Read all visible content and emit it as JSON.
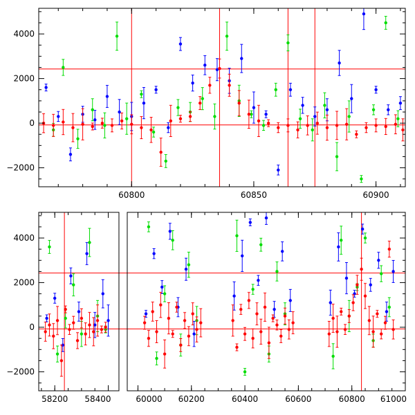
{
  "chart_data": [
    {
      "type": "scatter",
      "title": "",
      "xlabel": "",
      "ylabel": "",
      "xlim": [
        60762,
        60912
      ],
      "ylim": [
        -2850,
        5150
      ],
      "xticks": [
        60800,
        60850,
        60900
      ],
      "yticks": [
        -2000,
        0,
        2000,
        4000
      ],
      "hlines": [
        2430,
        -80
      ],
      "vlines": [
        60800,
        60836,
        60864,
        60875
      ],
      "series": [
        {
          "color": "#0000ff",
          "points": [
            [
              60765,
              1600
            ],
            [
              60770,
              300
            ],
            [
              60775,
              -1400
            ],
            [
              60780,
              400
            ],
            [
              60785,
              150
            ],
            [
              60790,
              1200
            ],
            [
              60795,
              500
            ],
            [
              60800,
              300
            ],
            [
              60805,
              900
            ],
            [
              60810,
              1500
            ],
            [
              60815,
              -200
            ],
            [
              60820,
              3550
            ],
            [
              60825,
              1800
            ],
            [
              60830,
              2600
            ],
            [
              60835,
              2400
            ],
            [
              60840,
              1900
            ],
            [
              60845,
              2900
            ],
            [
              60850,
              700
            ],
            [
              60855,
              400
            ],
            [
              60860,
              -2100
            ],
            [
              60865,
              1500
            ],
            [
              60870,
              800
            ],
            [
              60875,
              300
            ],
            [
              60880,
              600
            ],
            [
              60885,
              2700
            ],
            [
              60890,
              1100
            ],
            [
              60895,
              4900
            ],
            [
              60900,
              1500
            ],
            [
              60905,
              600
            ],
            [
              60910,
              900
            ]
          ]
        },
        {
          "color": "#00dd00",
          "points": [
            [
              60768,
              -300
            ],
            [
              60772,
              2500
            ],
            [
              60778,
              -700
            ],
            [
              60784,
              600
            ],
            [
              60789,
              -100
            ],
            [
              60794,
              3900
            ],
            [
              60798,
              200
            ],
            [
              60804,
              1300
            ],
            [
              60809,
              -400
            ],
            [
              60814,
              -1700
            ],
            [
              60819,
              700
            ],
            [
              60824,
              500
            ],
            [
              60829,
              1100
            ],
            [
              60834,
              300
            ],
            [
              60839,
              3900
            ],
            [
              60844,
              1000
            ],
            [
              60849,
              400
            ],
            [
              60854,
              -100
            ],
            [
              60859,
              1500
            ],
            [
              60864,
              3600
            ],
            [
              60869,
              200
            ],
            [
              60874,
              -300
            ],
            [
              60879,
              800
            ],
            [
              60884,
              -1500
            ],
            [
              60889,
              300
            ],
            [
              60894,
              -2500
            ],
            [
              60899,
              600
            ],
            [
              60904,
              4500
            ],
            [
              60909,
              200
            ]
          ]
        },
        {
          "color": "#ff0000",
          "points": [
            [
              60764,
              0
            ],
            [
              60768,
              -100
            ],
            [
              60772,
              50
            ],
            [
              60776,
              -200
            ],
            [
              60780,
              -50
            ],
            [
              60784,
              -150
            ],
            [
              60788,
              0
            ],
            [
              60792,
              -100
            ],
            [
              60796,
              100
            ],
            [
              60800,
              -50
            ],
            [
              60804,
              -200
            ],
            [
              60808,
              -300
            ],
            [
              60812,
              -1300
            ],
            [
              60816,
              100
            ],
            [
              60820,
              200
            ],
            [
              60824,
              300
            ],
            [
              60828,
              900
            ],
            [
              60832,
              1700
            ],
            [
              60836,
              2450
            ],
            [
              60840,
              1700
            ],
            [
              60844,
              900
            ],
            [
              60848,
              400
            ],
            [
              60852,
              100
            ],
            [
              60856,
              0
            ],
            [
              60860,
              -200
            ],
            [
              60864,
              -100
            ],
            [
              60868,
              -300
            ],
            [
              60872,
              -100
            ],
            [
              60876,
              0
            ],
            [
              60880,
              -200
            ],
            [
              60884,
              -100
            ],
            [
              60888,
              -50
            ],
            [
              60892,
              -500
            ],
            [
              60896,
              -200
            ],
            [
              60900,
              -100
            ],
            [
              60904,
              -150
            ],
            [
              60908,
              -50
            ],
            [
              60911,
              -300
            ]
          ]
        }
      ]
    },
    {
      "type": "scatter",
      "title": "",
      "xlabel": "",
      "ylabel": "",
      "xlim": [
        58140,
        61000
      ],
      "ylim": [
        -2850,
        5150
      ],
      "xticks": [
        58200,
        58400,
        60000,
        60200,
        60400,
        60600,
        60800,
        61000
      ],
      "xticklabels": [
        "58200",
        "58400",
        "60000",
        "60200",
        "60400",
        "60600",
        "60800",
        "61000"
      ],
      "yticks": [
        -2000,
        0,
        2000,
        4000
      ],
      "hlines": [
        2430,
        -80
      ],
      "vlines": [
        58236,
        60836
      ],
      "axis_break_between": [
        58440,
        59960
      ],
      "seasons": [
        [
          58160,
          58420
        ],
        [
          60020,
          60240
        ],
        [
          60350,
          60590
        ],
        [
          60710,
          60960
        ]
      ],
      "series": [
        {
          "color": "#0000ff",
          "points": [
            [
              58170,
              400
            ],
            [
              58200,
              1300
            ],
            [
              58230,
              -800
            ],
            [
              58260,
              2300
            ],
            [
              58290,
              700
            ],
            [
              58320,
              3300
            ],
            [
              58350,
              100
            ],
            [
              58380,
              1500
            ],
            [
              58400,
              300
            ],
            [
              60030,
              600
            ],
            [
              60060,
              3300
            ],
            [
              60090,
              1800
            ],
            [
              60120,
              4300
            ],
            [
              60150,
              900
            ],
            [
              60180,
              2600
            ],
            [
              60210,
              -300
            ],
            [
              60360,
              1400
            ],
            [
              60390,
              3200
            ],
            [
              60420,
              4700
            ],
            [
              60450,
              2100
            ],
            [
              60480,
              4900
            ],
            [
              60510,
              800
            ],
            [
              60540,
              3400
            ],
            [
              60570,
              1200
            ],
            [
              60720,
              1100
            ],
            [
              60750,
              3600
            ],
            [
              60780,
              2200
            ],
            [
              60810,
              1500
            ],
            [
              60840,
              4400
            ],
            [
              60870,
              1900
            ],
            [
              60900,
              3000
            ],
            [
              60930,
              700
            ],
            [
              60955,
              2500
            ]
          ]
        },
        {
          "color": "#00dd00",
          "points": [
            [
              58180,
              3600
            ],
            [
              58210,
              -1200
            ],
            [
              58240,
              400
            ],
            [
              58270,
              1900
            ],
            [
              58300,
              -300
            ],
            [
              58330,
              3800
            ],
            [
              58360,
              500
            ],
            [
              58390,
              -100
            ],
            [
              60040,
              4500
            ],
            [
              60070,
              -1400
            ],
            [
              60100,
              1500
            ],
            [
              60130,
              3900
            ],
            [
              60160,
              -800
            ],
            [
              60190,
              2800
            ],
            [
              60220,
              300
            ],
            [
              60370,
              4100
            ],
            [
              60400,
              -2000
            ],
            [
              60430,
              1700
            ],
            [
              60460,
              3700
            ],
            [
              60490,
              -1200
            ],
            [
              60520,
              2500
            ],
            [
              60550,
              600
            ],
            [
              60730,
              -1300
            ],
            [
              60760,
              3900
            ],
            [
              60790,
              500
            ],
            [
              60820,
              1800
            ],
            [
              60850,
              4000
            ],
            [
              60880,
              -600
            ],
            [
              60910,
              2400
            ],
            [
              60940,
              900
            ]
          ]
        },
        {
          "color": "#ff0000",
          "points": [
            [
              58165,
              -200
            ],
            [
              58180,
              100
            ],
            [
              58195,
              -400
            ],
            [
              58210,
              300
            ],
            [
              58225,
              -1500
            ],
            [
              58240,
              800
            ],
            [
              58255,
              -100
            ],
            [
              58270,
              200
            ],
            [
              58285,
              -600
            ],
            [
              58300,
              400
            ],
            [
              58315,
              -300
            ],
            [
              58330,
              100
            ],
            [
              58345,
              -200
            ],
            [
              58360,
              300
            ],
            [
              58375,
              -100
            ],
            [
              58390,
              0
            ],
            [
              60025,
              200
            ],
            [
              60040,
              -500
            ],
            [
              60055,
              700
            ],
            [
              60070,
              -200
            ],
            [
              60085,
              1000
            ],
            [
              60100,
              -1200
            ],
            [
              60115,
              400
            ],
            [
              60130,
              -300
            ],
            [
              60145,
              900
            ],
            [
              60160,
              -800
            ],
            [
              60175,
              300
            ],
            [
              60190,
              -400
            ],
            [
              60205,
              600
            ],
            [
              60220,
              -100
            ],
            [
              60235,
              200
            ],
            [
              60355,
              300
            ],
            [
              60370,
              -900
            ],
            [
              60385,
              800
            ],
            [
              60400,
              -300
            ],
            [
              60415,
              1200
            ],
            [
              60430,
              -500
            ],
            [
              60445,
              600
            ],
            [
              60460,
              -200
            ],
            [
              60475,
              900
            ],
            [
              60490,
              -700
            ],
            [
              60505,
              400
            ],
            [
              60520,
              100
            ],
            [
              60535,
              -400
            ],
            [
              60550,
              500
            ],
            [
              60565,
              -100
            ],
            [
              60580,
              200
            ],
            [
              60715,
              -300
            ],
            [
              60730,
              400
            ],
            [
              60745,
              -200
            ],
            [
              60760,
              700
            ],
            [
              60775,
              -100
            ],
            [
              60790,
              500
            ],
            [
              60805,
              1100
            ],
            [
              60820,
              1900
            ],
            [
              60836,
              2600
            ],
            [
              60850,
              1400
            ],
            [
              60865,
              300
            ],
            [
              60880,
              -200
            ],
            [
              60895,
              600
            ],
            [
              60910,
              -300
            ],
            [
              60925,
              200
            ],
            [
              60940,
              3500
            ],
            [
              60955,
              -100
            ]
          ]
        }
      ]
    }
  ],
  "colors": {
    "blue": "#0000ff",
    "green": "#00dd00",
    "red": "#ff0000",
    "axis": "#000000"
  }
}
